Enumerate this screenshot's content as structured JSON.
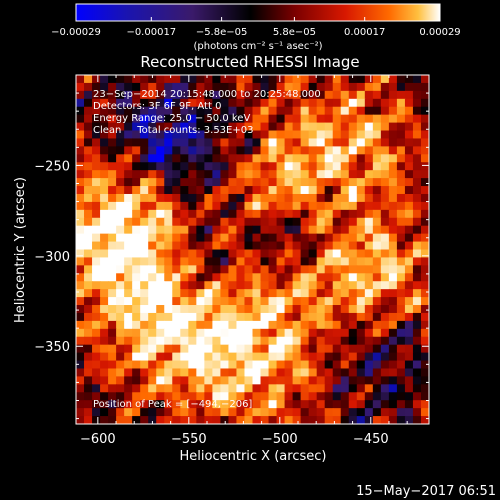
{
  "chart_data": {
    "type": "heatmap",
    "title": "Reconstructed RHESSI Image",
    "xlabel": "Heliocentric X (arcsec)",
    "ylabel": "Heliocentric Y (arcsec)",
    "xlim": [
      -612,
      -418
    ],
    "ylim": [
      -393,
      -200
    ],
    "xticks": [
      -600,
      -550,
      -500,
      -450
    ],
    "xtick_labels": [
      "−600",
      "−550",
      "−500",
      "−450"
    ],
    "yticks": [
      -250,
      -300,
      -350
    ],
    "ytick_labels": [
      "−250",
      "−300",
      "−350"
    ],
    "colorbar": {
      "min": -0.00029,
      "max": 0.00029,
      "ticks": [
        -0.00029,
        -0.00017,
        -5.8e-05,
        5.8e-05,
        0.00017,
        0.00029
      ],
      "tick_labels": [
        "−0.00029",
        "−0.00017",
        "−5.8e−05",
        "5.8e−05",
        "0.00017",
        "0.00029"
      ],
      "units_label": "(photons cm⁻² s⁻¹ asec⁻²)",
      "colors": [
        "#0000ff",
        "#1010a0",
        "#3a1a6a",
        "#000000",
        "#7a0000",
        "#d81800",
        "#ff6a00",
        "#ffc040",
        "#ffffff"
      ]
    },
    "annotations": [
      "23−Sep−2014 20:15:48.000 to 20:25:48.000",
      "Detectors: 3F 6F 9F, Att 0",
      "Energy Range: 25.0 − 50.0 keV",
      "Clean     Total counts: 3.53E+03"
    ],
    "peak_label": "Position of Peak = [−494,−206]",
    "peak_position": [
      -494,
      -206
    ],
    "grid": false
  },
  "footer": {
    "date": "15−May−2017 06:51"
  }
}
